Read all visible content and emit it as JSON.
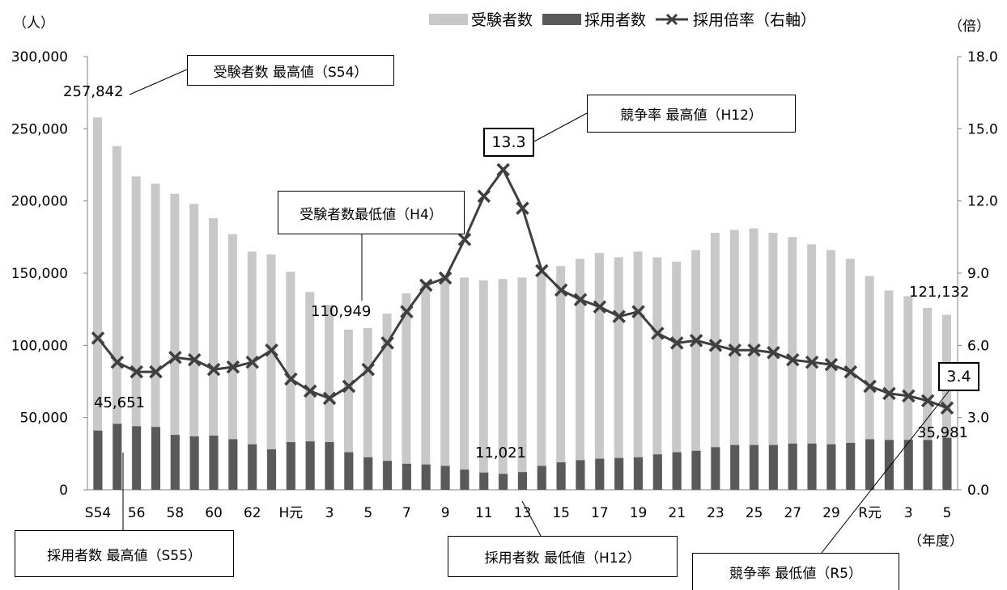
{
  "chart_data": {
    "type": "bar+line",
    "units": {
      "left": "（人）",
      "right": "（倍）",
      "x": "（年度）"
    },
    "legend": [
      "受験者数",
      "採用者数",
      "採用倍率（右軸）"
    ],
    "legend_position": "top",
    "y_left": {
      "min": 0,
      "max": 300000,
      "ticks": [
        "0",
        "50,000",
        "100,000",
        "150,000",
        "200,000",
        "250,000",
        "300,000"
      ]
    },
    "y_right": {
      "min": 0,
      "max": 18,
      "ticks": [
        "0.0",
        "3.0",
        "6.0",
        "9.0",
        "12.0",
        "15.0",
        "18.0"
      ]
    },
    "x_tick_labels": [
      "S54",
      "56",
      "58",
      "60",
      "62",
      "H元",
      "3",
      "5",
      "7",
      "9",
      "11",
      "13",
      "15",
      "17",
      "19",
      "21",
      "23",
      "25",
      "27",
      "29",
      "R元",
      "3",
      "5"
    ],
    "grid": false,
    "categories": [
      "S54",
      "S55",
      "S56",
      "S57",
      "S58",
      "S59",
      "S60",
      "S61",
      "S62",
      "S63",
      "H元",
      "H2",
      "H3",
      "H4",
      "H5",
      "H6",
      "H7",
      "H8",
      "H9",
      "H10",
      "H11",
      "H12",
      "H13",
      "H14",
      "H15",
      "H16",
      "H17",
      "H18",
      "H19",
      "H20",
      "H21",
      "H22",
      "H23",
      "H24",
      "H25",
      "H26",
      "H27",
      "H28",
      "H29",
      "H30",
      "R元",
      "R2",
      "R3",
      "R4",
      "R5"
    ],
    "series": [
      {
        "name": "受験者数",
        "axis": "left",
        "color": "#c8c8c8",
        "values": [
          257842,
          238000,
          217000,
          212000,
          205000,
          198000,
          188000,
          177000,
          165000,
          163000,
          151000,
          137000,
          128000,
          110949,
          112000,
          122000,
          136000,
          144000,
          148000,
          147000,
          145000,
          146000,
          147000,
          150000,
          155000,
          160000,
          164000,
          161000,
          165000,
          161000,
          158000,
          166000,
          178000,
          180000,
          181000,
          178000,
          175000,
          170000,
          166000,
          160000,
          148000,
          138000,
          134000,
          126000,
          121132
        ]
      },
      {
        "name": "採用者数",
        "axis": "left",
        "color": "#595959",
        "values": [
          41000,
          45651,
          44000,
          43500,
          38000,
          37000,
          37500,
          35000,
          31500,
          28000,
          33000,
          33500,
          33000,
          26000,
          22500,
          20000,
          18000,
          17500,
          16500,
          14000,
          11900,
          11021,
          12200,
          16500,
          19000,
          20500,
          21500,
          22000,
          22500,
          24500,
          26000,
          27000,
          29500,
          31000,
          31000,
          31000,
          32000,
          32000,
          31500,
          32500,
          35000,
          34500,
          34500,
          34500,
          35981
        ]
      },
      {
        "name": "採用倍率（右軸）",
        "axis": "right",
        "color": "#3f3f3f",
        "values": [
          6.3,
          5.3,
          4.9,
          4.9,
          5.5,
          5.4,
          5.0,
          5.1,
          5.3,
          5.8,
          4.6,
          4.1,
          3.8,
          4.3,
          5.0,
          6.1,
          7.4,
          8.5,
          8.8,
          10.4,
          12.2,
          13.3,
          11.7,
          9.1,
          8.3,
          7.9,
          7.6,
          7.2,
          7.4,
          6.5,
          6.1,
          6.2,
          6.0,
          5.8,
          5.8,
          5.7,
          5.4,
          5.3,
          5.2,
          4.9,
          4.3,
          4.0,
          3.9,
          3.7,
          3.4
        ]
      }
    ]
  },
  "annotations": {
    "applicants_max_box": "受験者数 最高値（S54）",
    "applicants_max_value": "257,842",
    "ratio_max_box": "競争率 最高値（H12）",
    "ratio_max_value": "13.3",
    "applicants_min_box": "受験者数最低値（H4）",
    "applicants_min_value": "110,949",
    "applicants_last_value": "121,132",
    "ratio_min_value": "3.4",
    "hired_max_value": "45,651",
    "hired_min_value": "11,021",
    "hired_last_value": "35,981",
    "hired_max_box": "採用者数 最高値（S55）",
    "hired_min_box": "採用者数 最低値（H12）",
    "ratio_min_box": "競争率 最低値（R5）"
  }
}
